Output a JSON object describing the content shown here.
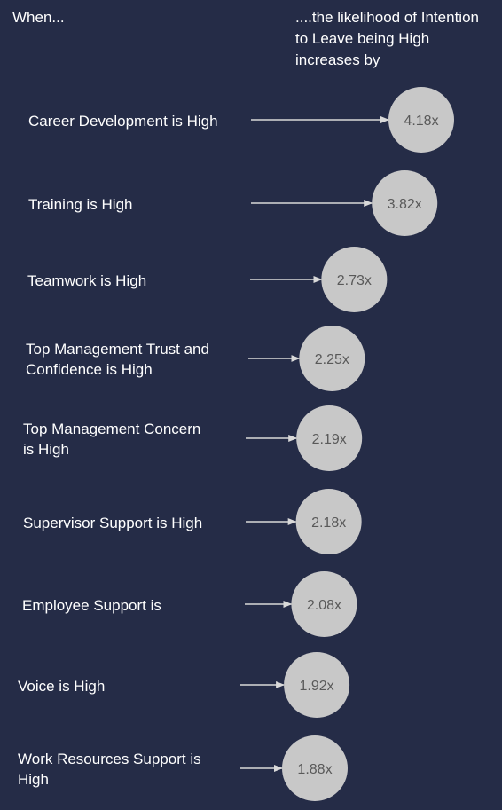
{
  "header": {
    "left": "When...",
    "right": "....the likelihood of Intention\nto Leave being High\nincreases by"
  },
  "colors": {
    "background": "#252c47",
    "bubble": "#c8c8c8",
    "bubble_text": "#595959",
    "arrow": "#d9d9d9",
    "text": "#ffffff"
  },
  "chart_data": {
    "type": "bar",
    "categories": [
      "Career Development is High",
      "Training is High",
      "Teamwork is High",
      "Top Management Trust and\nConfidence is High",
      "Top Management Concern\nis High",
      "Supervisor Support is High",
      "Employee Support is",
      "Voice is High",
      "Work Resources Support is\nHigh"
    ],
    "values": [
      4.18,
      3.82,
      2.73,
      2.25,
      2.19,
      2.18,
      2.08,
      1.92,
      1.88
    ],
    "value_labels": [
      "4.18x",
      "3.82x",
      "2.73x",
      "2.25x",
      "2.19x",
      "2.18x",
      "2.08x",
      "1.92x",
      "1.88x"
    ],
    "title": "",
    "xlabel": "",
    "ylabel": ""
  }
}
